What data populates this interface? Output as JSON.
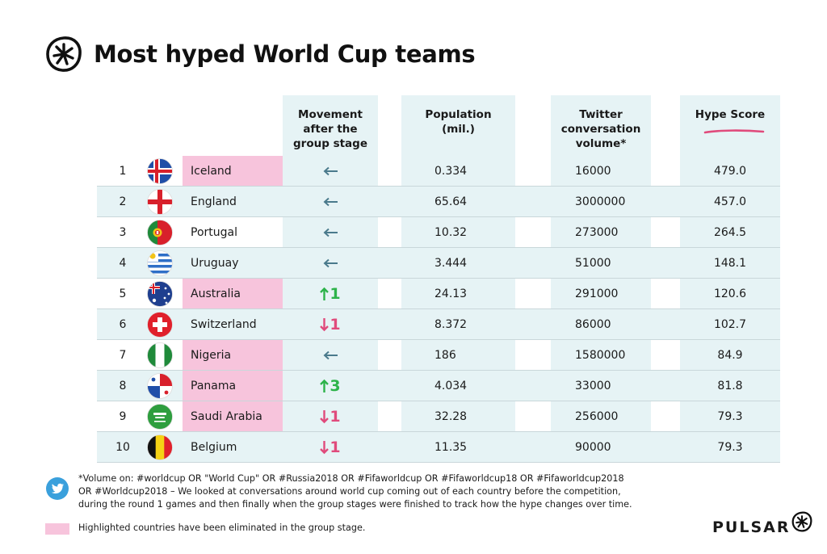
{
  "title": "Most hyped World Cup teams",
  "chart_data": {
    "type": "table",
    "columns": [
      "",
      "",
      "",
      "Movement after the group stage",
      "Population (mil.)",
      "Twitter conversation volume*",
      "Hype Score"
    ],
    "rows": [
      {
        "rank": "1",
        "country": "Iceland",
        "flag": "iceland-flag",
        "eliminated": true,
        "movement": {
          "dir": "left",
          "value": ""
        },
        "population": "0.334",
        "twitter": "16000",
        "hype": "479.0"
      },
      {
        "rank": "2",
        "country": "England",
        "flag": "england-flag",
        "eliminated": false,
        "movement": {
          "dir": "left",
          "value": ""
        },
        "population": "65.64",
        "twitter": "3000000",
        "hype": "457.0"
      },
      {
        "rank": "3",
        "country": "Portugal",
        "flag": "portugal-flag",
        "eliminated": false,
        "movement": {
          "dir": "left",
          "value": ""
        },
        "population": "10.32",
        "twitter": "273000",
        "hype": "264.5"
      },
      {
        "rank": "4",
        "country": "Uruguay",
        "flag": "uruguay-flag",
        "eliminated": false,
        "movement": {
          "dir": "left",
          "value": ""
        },
        "population": "3.444",
        "twitter": "51000",
        "hype": "148.1"
      },
      {
        "rank": "5",
        "country": "Australia",
        "flag": "australia-flag",
        "eliminated": true,
        "movement": {
          "dir": "up",
          "value": "1"
        },
        "population": "24.13",
        "twitter": "291000",
        "hype": "120.6"
      },
      {
        "rank": "6",
        "country": "Switzerland",
        "flag": "switzerland-flag",
        "eliminated": false,
        "movement": {
          "dir": "down",
          "value": "1"
        },
        "population": "8.372",
        "twitter": "86000",
        "hype": "102.7"
      },
      {
        "rank": "7",
        "country": "Nigeria",
        "flag": "nigeria-flag",
        "eliminated": true,
        "movement": {
          "dir": "left",
          "value": ""
        },
        "population": "186",
        "twitter": "1580000",
        "hype": "84.9"
      },
      {
        "rank": "8",
        "country": "Panama",
        "flag": "panama-flag",
        "eliminated": true,
        "movement": {
          "dir": "up",
          "value": "3"
        },
        "population": "4.034",
        "twitter": "33000",
        "hype": "81.8"
      },
      {
        "rank": "9",
        "country": "Saudi Arabia",
        "flag": "saudi-arabia-flag",
        "eliminated": true,
        "movement": {
          "dir": "down",
          "value": "1"
        },
        "population": "32.28",
        "twitter": "256000",
        "hype": "79.3"
      },
      {
        "rank": "10",
        "country": "Belgium",
        "flag": "belgium-flag",
        "eliminated": false,
        "movement": {
          "dir": "down",
          "value": "1"
        },
        "population": "11.35",
        "twitter": "90000",
        "hype": "79.3"
      }
    ]
  },
  "headers": {
    "movement": [
      "Movement",
      "after the",
      "group stage"
    ],
    "population": [
      "Population",
      "(mil.)"
    ],
    "twitter": [
      "Twitter",
      "conversation",
      "volume*"
    ],
    "hype": [
      "Hype Score"
    ]
  },
  "footnote": "*Volume on: #worldcup OR \"World Cup\" OR #Russia2018 OR #Fifaworldcup OR #Fifaworldcup18 OR #Fifaworldcup2018 OR #Worldcup2018 – We looked at conversations around world cup coming out of each country before the competition, during the round 1 games and then finally when the group stages were finished to track how the hype changes over time.",
  "legend": "Highlighted countries have been eliminated in the group stage.",
  "brand": "PULSAR",
  "colors": {
    "eliminated": "#f7c4dc",
    "band": "#e6f3f5",
    "up": "#2db34a",
    "down": "#e04b7c",
    "arrow": "#4a7a8c",
    "underline": "#e04b7c",
    "twitter": "#3aa0dc"
  }
}
